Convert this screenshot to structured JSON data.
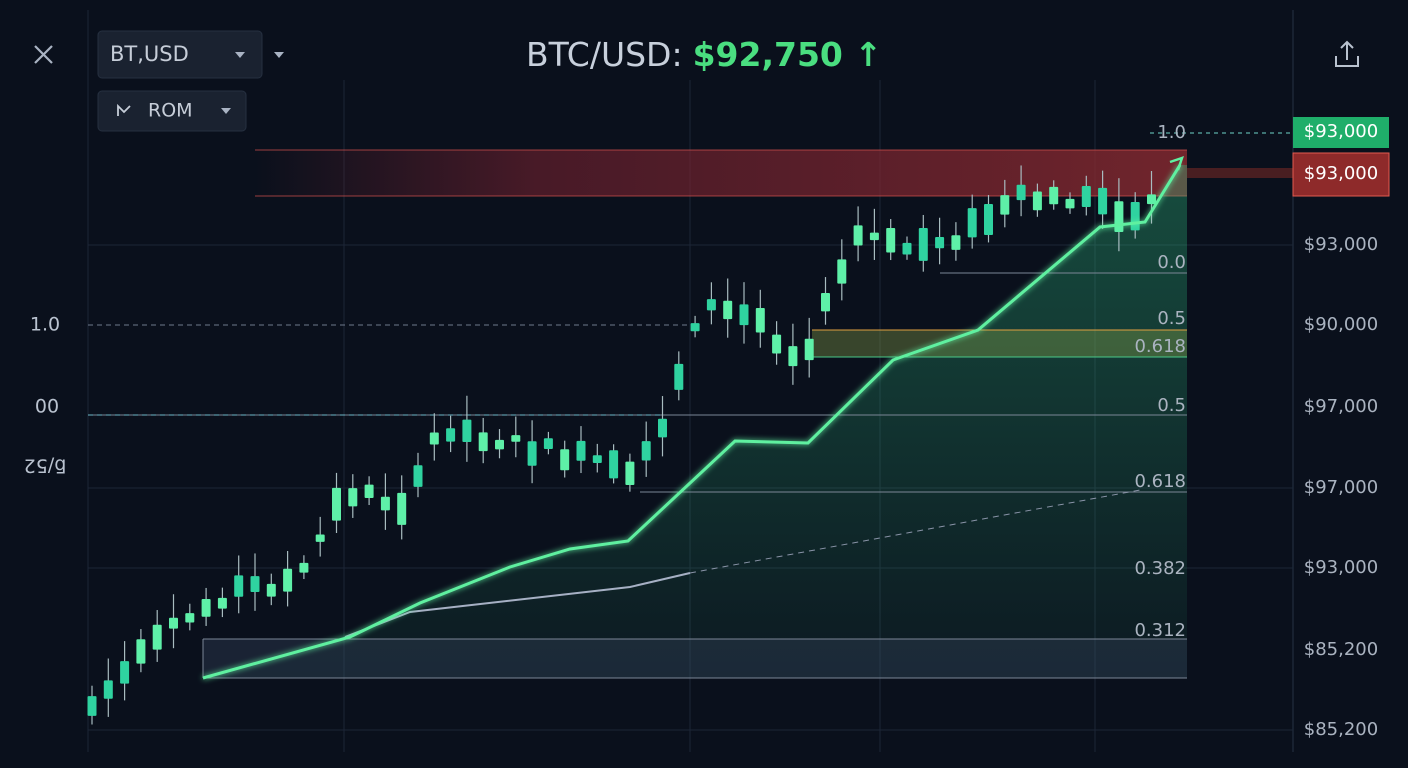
{
  "header": {
    "symbol_select": "BT,USD",
    "interval_select": "ROM",
    "title": "BTC/USD:",
    "price": "$92,750 ↑"
  },
  "left_labels": [
    "1.0",
    "00",
    "ƃ/52"
  ],
  "price_badges": [
    "$93,000",
    "$93,000"
  ],
  "price_axis": [
    "$93,000",
    "$90,000",
    "$97,000",
    "$97,000",
    "$93,000",
    "$85,200",
    "$85,200"
  ],
  "fib_labels": [
    "1.0",
    "0.0",
    "0.5",
    "0.618",
    "0.5",
    "0.618",
    "0.382",
    "0.312"
  ]
}
